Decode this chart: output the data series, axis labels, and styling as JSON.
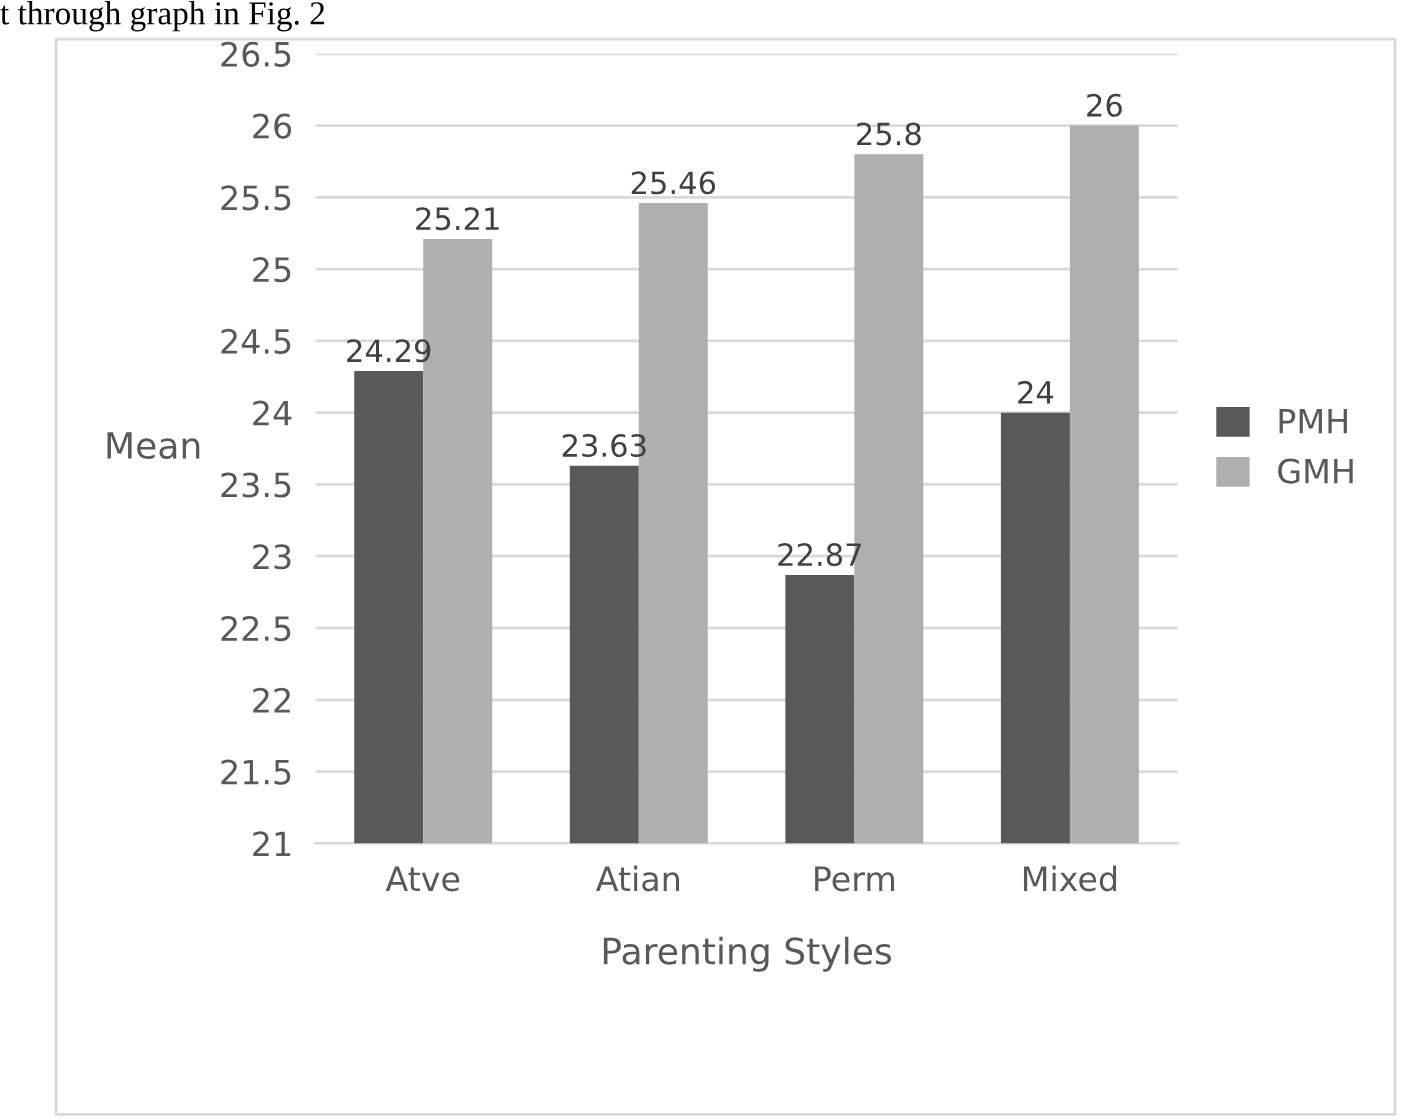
{
  "chart_data": {
    "type": "bar",
    "xlabel": "Parenting Styles",
    "ylabel": "Mean",
    "annotations": [
      "t through graph in Fig. 2"
    ],
    "categories": [
      "Atve",
      "Atian",
      "Perm",
      "Mixed"
    ],
    "series": [
      {
        "name": "PMH",
        "color": "#595959",
        "values": [
          24.29,
          23.63,
          22.87,
          24
        ],
        "value_labels": [
          "24.29",
          "23.63",
          "22.87",
          "24"
        ]
      },
      {
        "name": "GMH",
        "color": "#afafaf",
        "values": [
          25.21,
          25.46,
          25.8,
          26
        ],
        "value_labels": [
          "25.21",
          "25.46",
          "25.8",
          "26"
        ]
      }
    ],
    "ylim": [
      21,
      26.5
    ],
    "yticks": [
      21,
      21.5,
      22,
      22.5,
      23,
      23.5,
      24,
      24.5,
      25,
      25.5,
      26,
      26.5
    ],
    "grid": "y",
    "legend": "right"
  }
}
